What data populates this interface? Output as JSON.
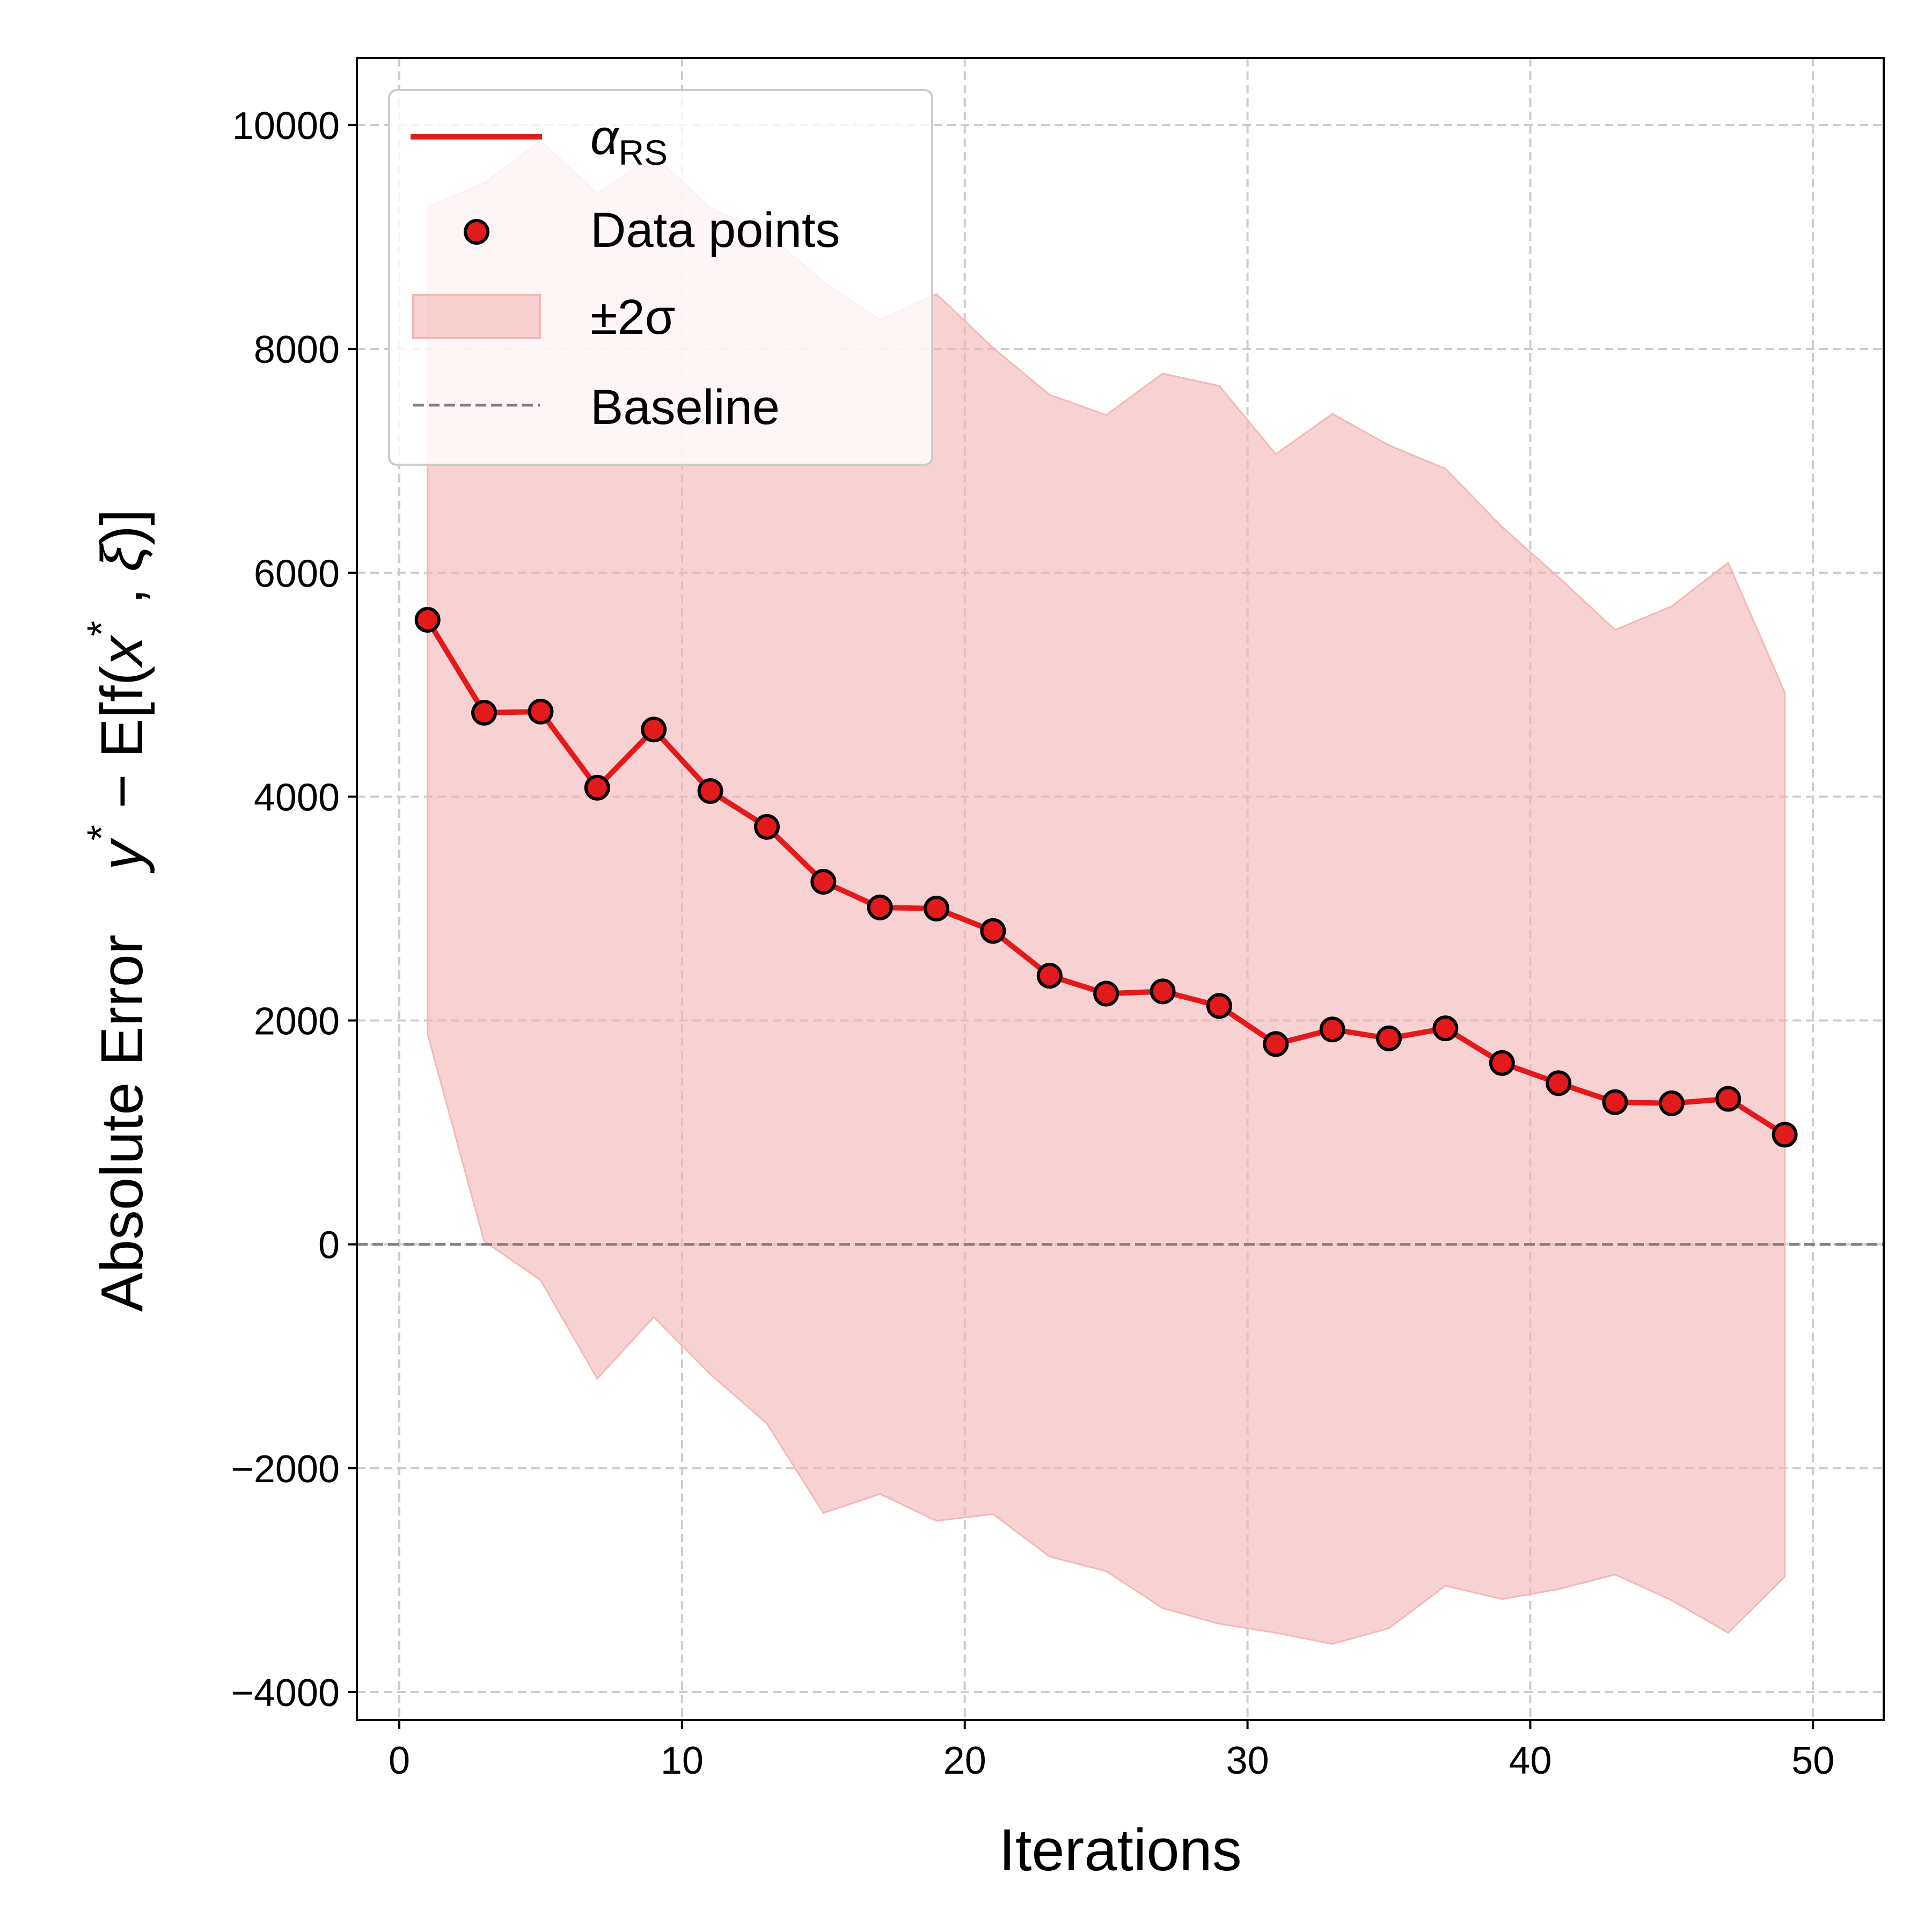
{
  "chart_data": {
    "type": "line",
    "xlabel": "Iterations",
    "ylabel": "Absolute Error    y* − E[f(x*, ξ)]",
    "ylabel_parts": {
      "main": "Absolute Error",
      "y": "y",
      "star": "*",
      "mid": " − E[f(",
      "x": "x",
      "star2": "*",
      "comma": " , ",
      "xi": "ξ",
      "end": ")]"
    },
    "xlim": [
      -1.5,
      52.5
    ],
    "ylim": [
      -4250,
      10600
    ],
    "xticks": [
      0,
      10,
      20,
      30,
      40,
      50
    ],
    "yticks": [
      -4000,
      -2000,
      0,
      2000,
      4000,
      6000,
      8000,
      10000
    ],
    "ytick_labels": [
      "−4000",
      "−2000",
      "0",
      "2000",
      "4000",
      "6000",
      "8000",
      "10000"
    ],
    "grid": true,
    "legend_placement": "top-left",
    "x": [
      1,
      3,
      5,
      7,
      9,
      11,
      13,
      15,
      17,
      19,
      21,
      23,
      25,
      27,
      29,
      31,
      33,
      35,
      37,
      39,
      41,
      43,
      45,
      47,
      49
    ],
    "series": [
      {
        "name": "α",
        "name_sub": "RS",
        "values": [
          5580,
          4750,
          4760,
          4080,
          4600,
          4050,
          3730,
          3240,
          3010,
          3000,
          2800,
          2400,
          2240,
          2260,
          2130,
          1790,
          1920,
          1840,
          1930,
          1620,
          1440,
          1270,
          1260,
          1300,
          980
        ],
        "color": "#e31a1c"
      }
    ],
    "band": {
      "name": "±2σ",
      "upper": [
        9270,
        9480,
        9860,
        9390,
        9730,
        9260,
        9030,
        8600,
        8260,
        8490,
        8010,
        7590,
        7410,
        7780,
        7670,
        7060,
        7420,
        7140,
        6930,
        6410,
        5960,
        5490,
        5700,
        6090,
        4930
      ],
      "lower": [
        1880,
        30,
        -320,
        -1200,
        -650,
        -1160,
        -1600,
        -2400,
        -2230,
        -2470,
        -2410,
        -2790,
        -2920,
        -3250,
        -3390,
        -3470,
        -3570,
        -3430,
        -3050,
        -3170,
        -3080,
        -2950,
        -3180,
        -3470,
        -2970
      ],
      "color": "#f4b6b6"
    },
    "scatter_name": "Data points",
    "baseline": {
      "name": "Baseline",
      "y": 0,
      "color": "#808080"
    }
  }
}
